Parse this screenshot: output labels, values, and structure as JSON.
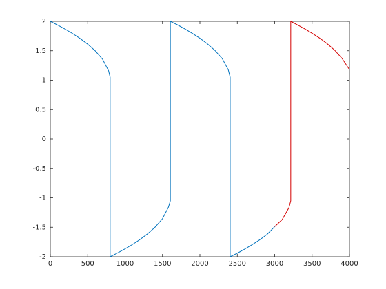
{
  "chart_data": {
    "type": "line",
    "xlim": [
      0,
      4000
    ],
    "ylim": [
      -2,
      2
    ],
    "xticks": [
      0,
      500,
      1000,
      1500,
      2000,
      2500,
      3000,
      3500,
      4000
    ],
    "yticks": [
      -2,
      -1.5,
      -1,
      -0.5,
      0,
      0.5,
      1,
      1.5,
      2
    ],
    "grid": false,
    "series": [
      {
        "color": "#0072bd",
        "x": [
          0,
          100,
          200,
          300,
          400,
          500,
          600,
          700,
          780,
          800,
          800,
          900,
          1000,
          1100,
          1200,
          1300,
          1400,
          1500,
          1580,
          1605,
          1605,
          1700,
          1800,
          1900,
          2000,
          2100,
          2200,
          2300,
          2380,
          2405,
          2405,
          2500,
          2600,
          2700,
          2800,
          2900,
          3000
        ],
        "values": [
          2,
          1.935,
          1.866,
          1.791,
          1.707,
          1.612,
          1.5,
          1.354,
          1.158,
          1.05,
          -2,
          -1.935,
          -1.866,
          -1.791,
          -1.707,
          -1.612,
          -1.5,
          -1.354,
          -1.158,
          -1.05,
          2,
          1.94,
          1.87,
          1.795,
          1.713,
          1.618,
          1.508,
          1.365,
          1.175,
          1.05,
          -2,
          -1.94,
          -1.87,
          -1.795,
          -1.713,
          -1.618,
          -1.49
        ]
      },
      {
        "color": "#d40000",
        "x": [
          3000,
          3100,
          3190,
          3215,
          3215,
          3300,
          3400,
          3500,
          3600,
          3700,
          3800,
          3900,
          4000
        ],
        "values": [
          -1.49,
          -1.37,
          -1.17,
          -1.05,
          2,
          1.942,
          1.873,
          1.798,
          1.716,
          1.622,
          1.512,
          1.371,
          1.18
        ]
      }
    ]
  }
}
